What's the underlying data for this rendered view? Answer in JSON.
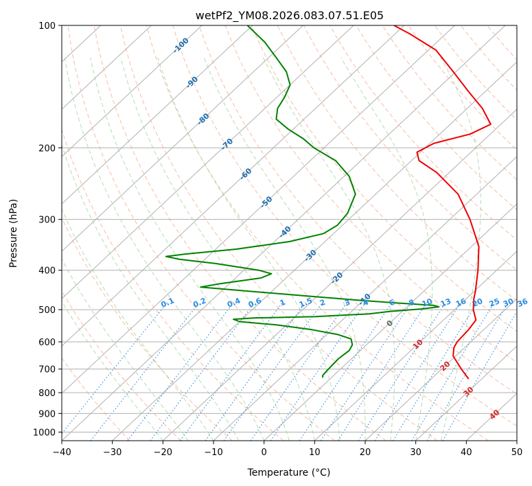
{
  "chart_data": {
    "type": "line",
    "title": "wetPf2_YM08.2026.083.07.51.E05",
    "xlabel": "Temperature (°C)",
    "ylabel": "Pressure (hPa)",
    "xlim": [
      -40,
      50
    ],
    "ylim": [
      1050,
      100
    ],
    "x_ticks": [
      -40,
      -30,
      -20,
      -10,
      0,
      10,
      20,
      30,
      40,
      50
    ],
    "x_tick_labels": [
      "−40",
      "−30",
      "−20",
      "−10",
      "0",
      "10",
      "20",
      "30",
      "40",
      "50"
    ],
    "p_ticks": [
      100,
      200,
      300,
      400,
      500,
      600,
      700,
      800,
      900,
      1000
    ],
    "p_tick_labels": [
      "100",
      "200",
      "300",
      "400",
      "500",
      "600",
      "700",
      "800",
      "900",
      "1000"
    ],
    "isotherm_labels": [
      {
        "t": -100,
        "label": "-100",
        "p": 112
      },
      {
        "t": -90,
        "label": "-90",
        "p": 138
      },
      {
        "t": -80,
        "label": "-80",
        "p": 170
      },
      {
        "t": -70,
        "label": "-70",
        "p": 196
      },
      {
        "t": -60,
        "label": "-60",
        "p": 232
      },
      {
        "t": -50,
        "label": "-50",
        "p": 272
      },
      {
        "t": -40,
        "label": "-40",
        "p": 322
      },
      {
        "t": -30,
        "label": "-30",
        "p": 368
      },
      {
        "t": -20,
        "label": "-20",
        "p": 418
      },
      {
        "t": -10,
        "label": "-10",
        "p": 472
      },
      {
        "t": 0,
        "label": "0",
        "p": 540
      },
      {
        "t": 10,
        "label": "10",
        "p": 608
      },
      {
        "t": 20,
        "label": "20",
        "p": 688
      },
      {
        "t": 30,
        "label": "30",
        "p": 795
      },
      {
        "t": 40,
        "label": "40",
        "p": 905
      }
    ],
    "mixing_ratios": [
      {
        "w": 0.1,
        "label": "0.1"
      },
      {
        "w": 0.2,
        "label": "0.2"
      },
      {
        "w": 0.4,
        "label": "0.4"
      },
      {
        "w": 0.6,
        "label": "0.6"
      },
      {
        "w": 1,
        "label": "1"
      },
      {
        "w": 1.5,
        "label": "1.5"
      },
      {
        "w": 2,
        "label": "2"
      },
      {
        "w": 3,
        "label": "3"
      },
      {
        "w": 4,
        "label": "4"
      },
      {
        "w": 6,
        "label": "6"
      },
      {
        "w": 8,
        "label": "8"
      },
      {
        "w": 10,
        "label": "10"
      },
      {
        "w": 13,
        "label": "13"
      },
      {
        "w": 16,
        "label": "16"
      },
      {
        "w": 20,
        "label": "20"
      },
      {
        "w": 25,
        "label": "25"
      },
      {
        "w": 30,
        "label": "30"
      },
      {
        "w": 36,
        "label": "36"
      }
    ],
    "mixing_ratio_label_pressure": 480,
    "series": [
      {
        "name": "temperature",
        "color": "#ee0000",
        "points": [
          [
            740,
            27.4
          ],
          [
            700,
            23.9
          ],
          [
            650,
            19.5
          ],
          [
            620,
            17.9
          ],
          [
            600,
            17.3
          ],
          [
            560,
            17.0
          ],
          [
            530,
            16.4
          ],
          [
            500,
            13.7
          ],
          [
            470,
            11.5
          ],
          [
            450,
            10.2
          ],
          [
            400,
            6.3
          ],
          [
            350,
            1.5
          ],
          [
            300,
            -6.0
          ],
          [
            260,
            -13.7
          ],
          [
            230,
            -22.5
          ],
          [
            215,
            -28.5
          ],
          [
            205,
            -30.7
          ],
          [
            195,
            -29.2
          ],
          [
            185,
            -24.0
          ],
          [
            175,
            -22.0
          ],
          [
            160,
            -27.0
          ],
          [
            145,
            -33.5
          ],
          [
            130,
            -40.5
          ],
          [
            115,
            -48.5
          ],
          [
            105,
            -57.0
          ],
          [
            100,
            -62.0
          ]
        ]
      },
      {
        "name": "dewpoint",
        "color": "#008000",
        "points": [
          [
            735,
            -1.7
          ],
          [
            725,
            -2.2
          ],
          [
            700,
            -2.4
          ],
          [
            660,
            -2.6
          ],
          [
            630,
            -2.2
          ],
          [
            610,
            -2.8
          ],
          [
            590,
            -4.3
          ],
          [
            575,
            -8.0
          ],
          [
            560,
            -14.0
          ],
          [
            545,
            -22.0
          ],
          [
            535,
            -30.0
          ],
          [
            528,
            -31.7
          ],
          [
            524,
            -28.0
          ],
          [
            520,
            -16.0
          ],
          [
            512,
            -6.0
          ],
          [
            505,
            -2.5
          ],
          [
            498,
            3.2
          ],
          [
            492,
            6.3
          ],
          [
            488,
            5.0
          ],
          [
            482,
            -2.0
          ],
          [
            475,
            -10.0
          ],
          [
            465,
            -20.0
          ],
          [
            455,
            -30.0
          ],
          [
            445,
            -40.0
          ],
          [
            440,
            -45.0
          ],
          [
            432,
            -42.0
          ],
          [
            418,
            -35.0
          ],
          [
            408,
            -33.8
          ],
          [
            400,
            -37.0
          ],
          [
            385,
            -47.0
          ],
          [
            376,
            -55.0
          ],
          [
            370,
            -58.3
          ],
          [
            365,
            -55.0
          ],
          [
            355,
            -46.0
          ],
          [
            340,
            -37.0
          ],
          [
            325,
            -32.0
          ],
          [
            310,
            -31.0
          ],
          [
            290,
            -31.5
          ],
          [
            260,
            -34.0
          ],
          [
            235,
            -39.0
          ],
          [
            215,
            -45.0
          ],
          [
            200,
            -52.0
          ],
          [
            190,
            -56.0
          ],
          [
            180,
            -61.0
          ],
          [
            170,
            -65.5
          ],
          [
            160,
            -67.5
          ],
          [
            150,
            -68.5
          ],
          [
            140,
            -70.0
          ],
          [
            130,
            -73.5
          ],
          [
            120,
            -78.5
          ],
          [
            110,
            -84.0
          ],
          [
            100,
            -91.0
          ]
        ]
      }
    ]
  }
}
